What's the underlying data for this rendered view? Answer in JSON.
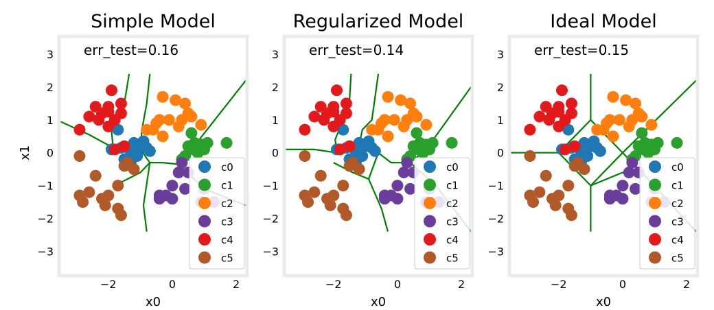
{
  "chart_data": [
    {
      "type": "scatter",
      "title": "Simple Model",
      "annotation": "err_test=0.16",
      "xlabel": "x0",
      "ylabel": "x1",
      "xlim": [
        -3.5,
        2.3
      ],
      "ylim": [
        -3.7,
        3.5
      ],
      "xticks": [
        -2,
        0,
        2
      ],
      "yticks": [
        -3,
        -2,
        -1,
        0,
        1,
        2,
        3
      ],
      "xtick_labels": [
        "−2",
        "0",
        "2"
      ],
      "ytick_labels": [
        "−3",
        "−2",
        "−1",
        "0",
        "1",
        "2",
        "3"
      ],
      "legend": "lower-right",
      "grid": false,
      "series": [
        {
          "name": "c0",
          "color": "#1f77b4",
          "points": [
            [
              -1.9,
              0.1
            ],
            [
              -1.6,
              0.15
            ],
            [
              -1.3,
              0.0
            ],
            [
              -1.2,
              0.3
            ],
            [
              -1.0,
              0.2
            ],
            [
              -0.8,
              0.15
            ],
            [
              -1.5,
              -0.2
            ],
            [
              -1.1,
              -0.1
            ],
            [
              -0.9,
              0.35
            ],
            [
              -1.7,
              0.7
            ],
            [
              -1.3,
              -0.3
            ],
            [
              -0.7,
              0.05
            ]
          ]
        },
        {
          "name": "c1",
          "color": "#2ca02c",
          "points": [
            [
              0.5,
              0.2
            ],
            [
              0.7,
              0.3
            ],
            [
              0.9,
              0.25
            ],
            [
              1.1,
              0.3
            ],
            [
              0.6,
              0.6
            ],
            [
              1.7,
              0.3
            ],
            [
              0.8,
              0.0
            ],
            [
              1.0,
              0.1
            ],
            [
              0.4,
              -0.1
            ],
            [
              0.3,
              -0.2
            ],
            [
              0.65,
              0.1
            ]
          ]
        },
        {
          "name": "c2",
          "color": "#ff7f0e",
          "points": [
            [
              -0.3,
              1.7
            ],
            [
              0.1,
              1.6
            ],
            [
              0.4,
              1.5
            ],
            [
              -0.1,
              1.0
            ],
            [
              0.3,
              1.0
            ],
            [
              0.6,
              1.1
            ],
            [
              -0.6,
              0.7
            ],
            [
              -0.8,
              0.7
            ],
            [
              -0.5,
              0.9
            ],
            [
              -0.4,
              1.0
            ],
            [
              0.9,
              0.85
            ],
            [
              0.5,
              1.2
            ],
            [
              -0.3,
              0.5
            ],
            [
              0.2,
              0.8
            ]
          ]
        },
        {
          "name": "c3",
          "color": "#6a3d9a",
          "points": [
            [
              0.2,
              -0.6
            ],
            [
              0.5,
              -0.6
            ],
            [
              0.0,
              -1.0
            ],
            [
              -0.2,
              -1.3
            ],
            [
              -0.4,
              -1.3
            ],
            [
              0.0,
              -1.4
            ],
            [
              -0.4,
              -1.4
            ],
            [
              0.3,
              -0.3
            ],
            [
              0.9,
              -1.5
            ],
            [
              1.3,
              -1.5
            ],
            [
              1.0,
              -1.1
            ],
            [
              0.4,
              -1.1
            ]
          ]
        },
        {
          "name": "c4",
          "color": "#e31a1c",
          "points": [
            [
              -2.4,
              1.4
            ],
            [
              -2.0,
              1.4
            ],
            [
              -1.9,
              1.9
            ],
            [
              -1.6,
              1.5
            ],
            [
              -2.2,
              1.2
            ],
            [
              -2.3,
              1.0
            ],
            [
              -1.8,
              1.0
            ],
            [
              -1.6,
              1.2
            ],
            [
              -2.6,
              1.1
            ],
            [
              -2.9,
              0.7
            ],
            [
              -2.0,
              0.8
            ],
            [
              -2.0,
              1.25
            ],
            [
              -1.8,
              0.1
            ],
            [
              -1.5,
              0.2
            ]
          ]
        },
        {
          "name": "c5",
          "color": "#b15928",
          "points": [
            [
              -2.9,
              -0.1
            ],
            [
              -2.4,
              -0.7
            ],
            [
              -2.6,
              -1.2
            ],
            [
              -2.9,
              -1.3
            ],
            [
              -2.8,
              -1.5
            ],
            [
              -2.2,
              -1.4
            ],
            [
              -2.0,
              -1.3
            ],
            [
              -2.1,
              -1.6
            ],
            [
              -1.7,
              -1.7
            ],
            [
              -1.6,
              -1.9
            ],
            [
              -1.7,
              -1.0
            ],
            [
              -1.4,
              -0.3
            ],
            [
              -1.5,
              -0.4
            ],
            [
              -1.2,
              -0.5
            ]
          ]
        }
      ]
    },
    {
      "type": "scatter",
      "title": "Regularized Model",
      "annotation": "err_test=0.14",
      "xlabel": "x0",
      "ylabel": "",
      "xlim": [
        -3.5,
        2.3
      ],
      "ylim": [
        -3.7,
        3.5
      ],
      "xticks": [
        -2,
        0,
        2
      ],
      "yticks": [
        -3,
        -2,
        -1,
        0,
        1,
        2,
        3
      ],
      "xtick_labels": [
        "−2",
        "0",
        "2"
      ],
      "ytick_labels": [
        "−3",
        "−2",
        "−1",
        "0",
        "1",
        "2",
        "3"
      ],
      "legend": "lower-right",
      "grid": false,
      "series": "same points as Simple Model"
    },
    {
      "type": "scatter",
      "title": "Ideal Model",
      "annotation": "err_test=0.15",
      "xlabel": "x0",
      "ylabel": "",
      "xlim": [
        -3.5,
        2.3
      ],
      "ylim": [
        -3.7,
        3.5
      ],
      "xticks": [
        -2,
        0,
        2
      ],
      "yticks": [
        -3,
        -2,
        -1,
        0,
        1,
        2,
        3
      ],
      "xtick_labels": [
        "−2",
        "0",
        "2"
      ],
      "ytick_labels": [
        "−3",
        "−2",
        "−1",
        "0",
        "1",
        "2",
        "3"
      ],
      "legend": "lower-right",
      "grid": false,
      "series": "same points as Simple Model"
    }
  ],
  "colors": {
    "boundary": "#008000",
    "frame": "#ebebeb"
  },
  "boundaries": [
    [
      [
        [
          -3.5,
          0.95
        ],
        [
          -2.6,
          0.55
        ],
        [
          -1.85,
          0.15
        ],
        [
          -1.4,
          0.2
        ],
        [
          -1.0,
          0.1
        ],
        [
          -0.7,
          -0.3
        ],
        [
          -0.3,
          -0.3
        ],
        [
          0.2,
          -0.35
        ],
        [
          0.6,
          0.1
        ],
        [
          2.3,
          2.2
        ]
      ],
      [
        [
          -1.85,
          0.15
        ],
        [
          -1.9,
          0.65
        ],
        [
          -1.8,
          1.0
        ],
        [
          -1.5,
          1.5
        ],
        [
          -1.35,
          2.4
        ]
      ],
      [
        [
          -1.0,
          0.1
        ],
        [
          -0.95,
          0.7
        ],
        [
          -0.8,
          1.5
        ],
        [
          -0.7,
          2.4
        ]
      ],
      [
        [
          -0.7,
          -0.3
        ],
        [
          -1.0,
          -0.6
        ],
        [
          -1.6,
          -0.9
        ],
        [
          -1.7,
          -1.0
        ]
      ],
      [
        [
          -0.7,
          -0.3
        ],
        [
          -0.9,
          -1.6
        ],
        [
          -0.8,
          -2.4
        ]
      ],
      [
        [
          0.2,
          -0.35
        ],
        [
          1.0,
          -1.1
        ],
        [
          2.3,
          -1.6
        ]
      ]
    ],
    [
      [
        [
          -3.5,
          0.1
        ],
        [
          -2.6,
          0.1
        ],
        [
          -1.9,
          0.0
        ],
        [
          -1.5,
          0.1
        ],
        [
          -1.2,
          0.2
        ],
        [
          -0.6,
          0.0
        ],
        [
          -0.2,
          -0.3
        ],
        [
          0.4,
          -0.3
        ],
        [
          0.9,
          0.1
        ],
        [
          2.3,
          2.0
        ]
      ],
      [
        [
          -1.9,
          0.0
        ],
        [
          -1.95,
          0.4
        ],
        [
          -1.7,
          1.0
        ],
        [
          -1.5,
          1.6
        ],
        [
          -1.45,
          2.4
        ]
      ],
      [
        [
          -1.2,
          0.2
        ],
        [
          -1.1,
          0.7
        ],
        [
          -0.8,
          1.0
        ],
        [
          -0.6,
          2.4
        ]
      ],
      [
        [
          -0.6,
          0.0
        ],
        [
          -0.9,
          -0.8
        ],
        [
          -1.4,
          -0.6
        ],
        [
          -2.0,
          -0.3
        ]
      ],
      [
        [
          -0.9,
          -0.8
        ],
        [
          -0.5,
          -1.7
        ],
        [
          -0.3,
          -2.4
        ]
      ],
      [
        [
          0.4,
          -0.3
        ],
        [
          1.2,
          -1.0
        ],
        [
          2.3,
          -2.4
        ]
      ]
    ],
    [
      [
        [
          -3.5,
          0.0
        ],
        [
          -2.0,
          0.0
        ],
        [
          -1.0,
          -1.0
        ],
        [
          0.0,
          0.0
        ],
        [
          -1.0,
          1.0
        ],
        [
          -2.0,
          0.0
        ]
      ],
      [
        [
          -1.0,
          1.0
        ],
        [
          -1.0,
          2.4
        ]
      ],
      [
        [
          -1.0,
          -1.0
        ],
        [
          -1.0,
          -2.4
        ]
      ],
      [
        [
          0.0,
          0.0
        ],
        [
          2.3,
          2.2
        ]
      ],
      [
        [
          0.0,
          0.0
        ],
        [
          0.7,
          -0.7
        ],
        [
          2.3,
          -2.4
        ]
      ],
      [
        [
          -1.0,
          -1.0
        ],
        [
          0.0,
          -0.6
        ],
        [
          0.7,
          -0.7
        ]
      ]
    ]
  ]
}
